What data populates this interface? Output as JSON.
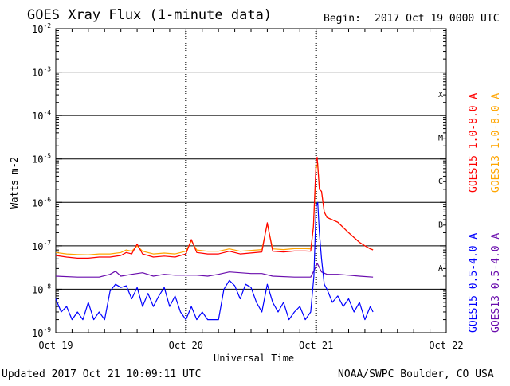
{
  "title": "GOES Xray Flux (1-minute data)",
  "begin_label": "Begin:",
  "begin_value": "2017 Oct 19 0000 UTC",
  "updated": "Updated 2017 Oct 21 10:09:11 UTC",
  "credit": "NOAA/SWPC Boulder, CO USA",
  "chart_data": {
    "type": "line",
    "title": "GOES Xray Flux (1-minute data)",
    "xlabel": "Universal Time",
    "ylabel": "Watts m-2",
    "yscale": "log",
    "ylim": [
      1e-09,
      0.01
    ],
    "xlim_hours": [
      0,
      72
    ],
    "x_ticks": [
      {
        "hour": 0,
        "label": "Oct 19"
      },
      {
        "hour": 24,
        "label": "Oct 20"
      },
      {
        "hour": 48,
        "label": "Oct 21"
      },
      {
        "hour": 72,
        "label": "Oct 22"
      }
    ],
    "y_ticks": [
      {
        "exp": -9,
        "base": "10",
        "sup": "-9"
      },
      {
        "exp": -8,
        "base": "10",
        "sup": "-8"
      },
      {
        "exp": -7,
        "base": "10",
        "sup": "-7"
      },
      {
        "exp": -6,
        "base": "10",
        "sup": "-6"
      },
      {
        "exp": -5,
        "base": "10",
        "sup": "-5"
      },
      {
        "exp": -4,
        "base": "10",
        "sup": "-4"
      },
      {
        "exp": -3,
        "base": "10",
        "sup": "-3"
      },
      {
        "exp": -2,
        "base": "10",
        "sup": "-2"
      }
    ],
    "flare_classes": [
      {
        "label": "A",
        "exp": -7.5
      },
      {
        "label": "B",
        "exp": -6.5
      },
      {
        "label": "C",
        "exp": -5.5
      },
      {
        "label": "M",
        "exp": -4.5
      },
      {
        "label": "X",
        "exp": -3.5
      }
    ],
    "grid": true,
    "series": [
      {
        "name": "GOES13 1.0-8.0 A",
        "color": "#ffa500",
        "points": [
          [
            0,
            7e-08
          ],
          [
            2,
            6.5e-08
          ],
          [
            4,
            6.3e-08
          ],
          [
            6,
            6.2e-08
          ],
          [
            8,
            6.5e-08
          ],
          [
            10,
            6.5e-08
          ],
          [
            12,
            7e-08
          ],
          [
            13,
            8e-08
          ],
          [
            14,
            7.5e-08
          ],
          [
            15,
            1e-07
          ],
          [
            16,
            7.5e-08
          ],
          [
            18,
            6.5e-08
          ],
          [
            20,
            6.8e-08
          ],
          [
            22,
            6.5e-08
          ],
          [
            24,
            7.5e-08
          ],
          [
            25,
            1.3e-07
          ],
          [
            26,
            8e-08
          ],
          [
            28,
            7.5e-08
          ],
          [
            30,
            7.5e-08
          ],
          [
            32,
            8.5e-08
          ],
          [
            34,
            7.5e-08
          ],
          [
            38,
            8.2e-08
          ],
          [
            39,
            3.2e-07
          ],
          [
            40,
            8.5e-08
          ],
          [
            42,
            8.2e-08
          ],
          [
            44,
            8.6e-08
          ],
          [
            46,
            8.6e-08
          ],
          [
            47,
            8.5e-08
          ],
          [
            47.5,
            2.6e-07
          ],
          [
            48,
            6e-06
          ],
          [
            48.3,
            8e-06
          ],
          [
            48.6,
            2e-06
          ],
          [
            49,
            1.8e-06
          ],
          [
            49.5,
            6e-07
          ],
          [
            50,
            4.5e-07
          ],
          [
            52,
            3.5e-07
          ],
          [
            54,
            2e-07
          ],
          [
            56,
            1.2e-07
          ],
          [
            57,
            1e-07
          ],
          [
            58,
            8.5e-08
          ],
          [
            58.5,
            8.2e-08
          ]
        ]
      },
      {
        "name": "GOES15 1.0-8.0 A",
        "color": "#ff0000",
        "points": [
          [
            0,
            6e-08
          ],
          [
            2,
            5.5e-08
          ],
          [
            4,
            5.2e-08
          ],
          [
            6,
            5.2e-08
          ],
          [
            8,
            5.5e-08
          ],
          [
            10,
            5.5e-08
          ],
          [
            12,
            6e-08
          ],
          [
            13,
            7e-08
          ],
          [
            14,
            6.5e-08
          ],
          [
            15,
            1.1e-07
          ],
          [
            16,
            6.5e-08
          ],
          [
            18,
            5.5e-08
          ],
          [
            20,
            5.8e-08
          ],
          [
            22,
            5.5e-08
          ],
          [
            24,
            6.5e-08
          ],
          [
            25,
            1.4e-07
          ],
          [
            26,
            7e-08
          ],
          [
            28,
            6.5e-08
          ],
          [
            30,
            6.5e-08
          ],
          [
            32,
            7.5e-08
          ],
          [
            34,
            6.5e-08
          ],
          [
            38,
            7.2e-08
          ],
          [
            39,
            3.4e-07
          ],
          [
            40,
            7.5e-08
          ],
          [
            42,
            7.2e-08
          ],
          [
            44,
            7.6e-08
          ],
          [
            46,
            7.6e-08
          ],
          [
            47,
            7.5e-08
          ],
          [
            47.5,
            2.8e-07
          ],
          [
            48,
            9e-06
          ],
          [
            48.2,
            1.1e-05
          ],
          [
            48.6,
            2e-06
          ],
          [
            49,
            1.8e-06
          ],
          [
            49.5,
            6e-07
          ],
          [
            50,
            4.5e-07
          ],
          [
            52,
            3.5e-07
          ],
          [
            54,
            2e-07
          ],
          [
            56,
            1.2e-07
          ],
          [
            57,
            1e-07
          ],
          [
            58,
            8.5e-08
          ],
          [
            58.5,
            8e-08
          ]
        ]
      },
      {
        "name": "GOES13 0.5-4.0 A",
        "color": "#6a0dad",
        "points": [
          [
            0,
            2e-08
          ],
          [
            4,
            1.9e-08
          ],
          [
            8,
            1.9e-08
          ],
          [
            10,
            2.2e-08
          ],
          [
            11,
            2.6e-08
          ],
          [
            12,
            2e-08
          ],
          [
            14,
            2.2e-08
          ],
          [
            16,
            2.4e-08
          ],
          [
            18,
            2e-08
          ],
          [
            20,
            2.2e-08
          ],
          [
            22,
            2.1e-08
          ],
          [
            24,
            2.1e-08
          ],
          [
            26,
            2.1e-08
          ],
          [
            28,
            2e-08
          ],
          [
            30,
            2.2e-08
          ],
          [
            32,
            2.5e-08
          ],
          [
            34,
            2.4e-08
          ],
          [
            36,
            2.3e-08
          ],
          [
            38,
            2.3e-08
          ],
          [
            40,
            2e-08
          ],
          [
            44,
            1.9e-08
          ],
          [
            47,
            1.9e-08
          ],
          [
            47.8,
            3e-08
          ],
          [
            48.2,
            4e-08
          ],
          [
            49,
            2.5e-08
          ],
          [
            50,
            2.2e-08
          ],
          [
            52,
            2.2e-08
          ],
          [
            54,
            2.1e-08
          ],
          [
            56,
            2e-08
          ],
          [
            58.5,
            1.9e-08
          ]
        ]
      },
      {
        "name": "GOES15 0.5-4.0 A",
        "color": "#0000ff",
        "points": [
          [
            0,
            6e-09
          ],
          [
            1,
            3e-09
          ],
          [
            2,
            4e-09
          ],
          [
            3,
            2e-09
          ],
          [
            4,
            3e-09
          ],
          [
            5,
            2e-09
          ],
          [
            6,
            5e-09
          ],
          [
            7,
            2e-09
          ],
          [
            8,
            3e-09
          ],
          [
            9,
            2e-09
          ],
          [
            10,
            9e-09
          ],
          [
            11,
            1.3e-08
          ],
          [
            12,
            1.1e-08
          ],
          [
            13,
            1.2e-08
          ],
          [
            14,
            6e-09
          ],
          [
            15,
            1.1e-08
          ],
          [
            16,
            4e-09
          ],
          [
            17,
            8e-09
          ],
          [
            18,
            4e-09
          ],
          [
            19,
            7e-09
          ],
          [
            20,
            1.1e-08
          ],
          [
            21,
            4e-09
          ],
          [
            22,
            7e-09
          ],
          [
            23,
            3e-09
          ],
          [
            24,
            2e-09
          ],
          [
            25,
            4e-09
          ],
          [
            26,
            2e-09
          ],
          [
            27,
            3e-09
          ],
          [
            28,
            2e-09
          ],
          [
            29,
            2e-09
          ],
          [
            30,
            2e-09
          ],
          [
            31,
            1e-08
          ],
          [
            32,
            1.6e-08
          ],
          [
            33,
            1.2e-08
          ],
          [
            34,
            6e-09
          ],
          [
            35,
            1.3e-08
          ],
          [
            36,
            1.1e-08
          ],
          [
            37,
            5e-09
          ],
          [
            38,
            3e-09
          ],
          [
            39,
            1.3e-08
          ],
          [
            40,
            5e-09
          ],
          [
            41,
            3e-09
          ],
          [
            42,
            5e-09
          ],
          [
            43,
            2e-09
          ],
          [
            44,
            3e-09
          ],
          [
            45,
            4e-09
          ],
          [
            46,
            2e-09
          ],
          [
            47,
            3e-09
          ],
          [
            47.6,
            2e-08
          ],
          [
            48,
            8e-07
          ],
          [
            48.3,
            1e-06
          ],
          [
            48.6,
            2e-07
          ],
          [
            49,
            5e-08
          ],
          [
            49.5,
            1.3e-08
          ],
          [
            50,
            1e-08
          ],
          [
            51,
            5e-09
          ],
          [
            52,
            7e-09
          ],
          [
            53,
            4e-09
          ],
          [
            54,
            6e-09
          ],
          [
            55,
            3e-09
          ],
          [
            56,
            5e-09
          ],
          [
            57,
            2e-09
          ],
          [
            58,
            4e-09
          ],
          [
            58.5,
            3e-09
          ]
        ]
      }
    ]
  }
}
